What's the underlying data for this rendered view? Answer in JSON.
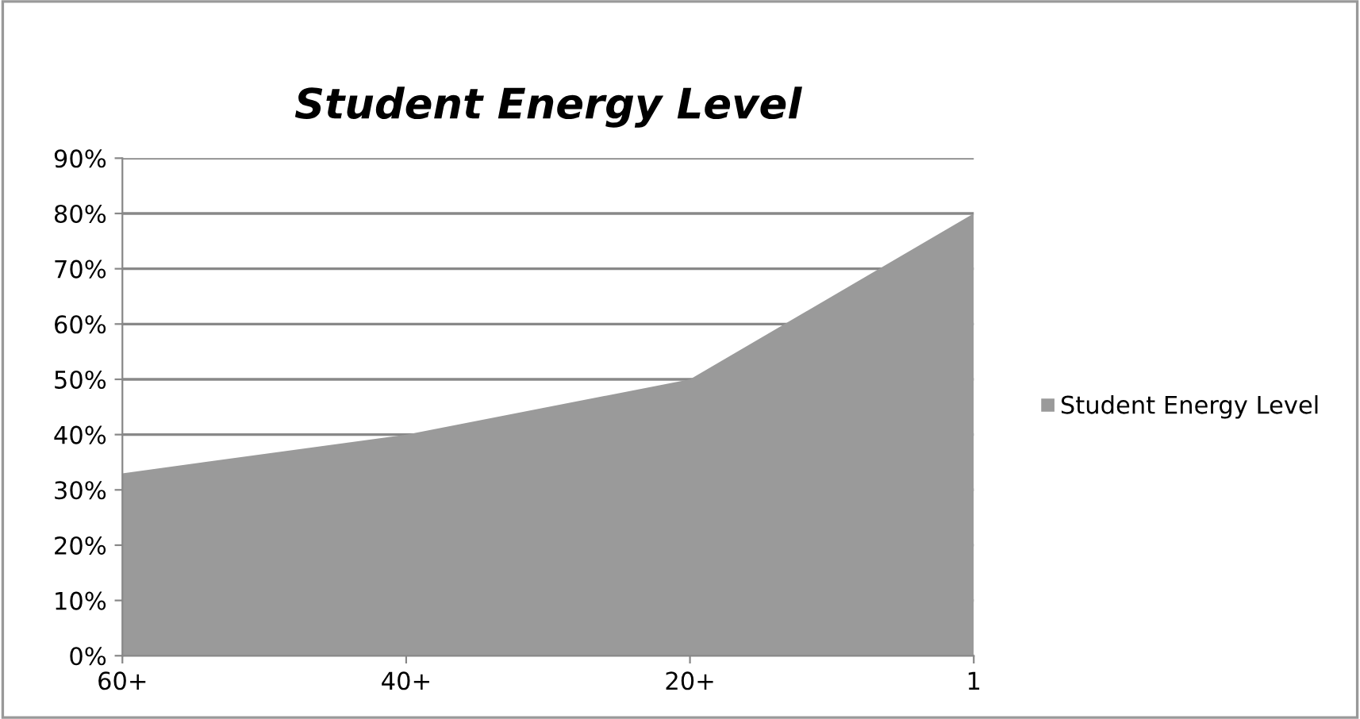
{
  "chart_data": {
    "type": "area",
    "title": "Student Energy Level",
    "categories": [
      "60+",
      "40+",
      "20+",
      "1"
    ],
    "series": [
      {
        "name": "Student Energy Level",
        "color": "#9a9a9a",
        "values": [
          33,
          40,
          50,
          80
        ]
      }
    ],
    "ylim": [
      0,
      90
    ],
    "yticks": [
      {
        "value": 0,
        "label": "0%"
      },
      {
        "value": 10,
        "label": "10%"
      },
      {
        "value": 20,
        "label": "20%"
      },
      {
        "value": 30,
        "label": "30%"
      },
      {
        "value": 40,
        "label": "40%"
      },
      {
        "value": 50,
        "label": "50%"
      },
      {
        "value": 60,
        "label": "60%"
      },
      {
        "value": 70,
        "label": "70%"
      },
      {
        "value": 80,
        "label": "80%"
      },
      {
        "value": 90,
        "label": "90%"
      }
    ],
    "grid": "y",
    "legend": "right"
  }
}
